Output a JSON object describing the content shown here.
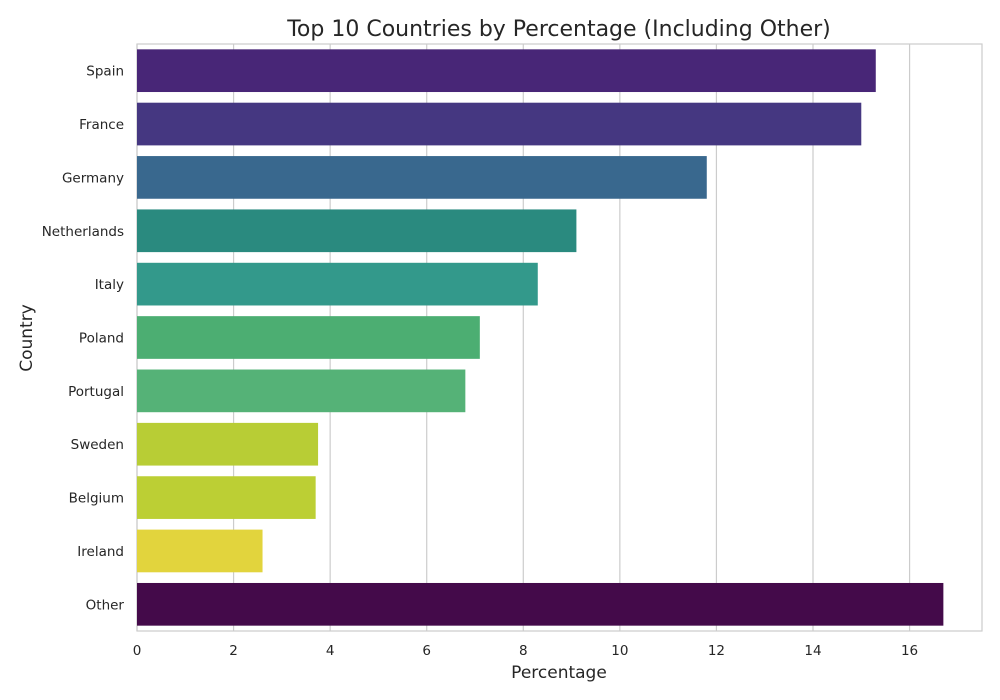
{
  "chart_data": {
    "type": "bar",
    "orientation": "horizontal",
    "title": "Top 10 Countries by Percentage (Including Other)",
    "xlabel": "Percentage",
    "ylabel": "Country",
    "categories": [
      "Spain",
      "France",
      "Germany",
      "Netherlands",
      "Italy",
      "Poland",
      "Portugal",
      "Sweden",
      "Belgium",
      "Ireland",
      "Other"
    ],
    "values": [
      15.3,
      15.0,
      11.8,
      9.1,
      8.3,
      7.1,
      6.8,
      3.75,
      3.7,
      2.6,
      16.7
    ],
    "colors": [
      "#482677",
      "#453781",
      "#39688e",
      "#2a8a7f",
      "#33998b",
      "#4cae72",
      "#55b277",
      "#b8cd35",
      "#bccf34",
      "#e2d43d",
      "#440a4a"
    ],
    "xlim": [
      0,
      17.5
    ],
    "xticks": [
      0,
      2,
      4,
      6,
      8,
      10,
      12,
      14,
      16
    ],
    "grid": "vertical",
    "legend": "none"
  }
}
